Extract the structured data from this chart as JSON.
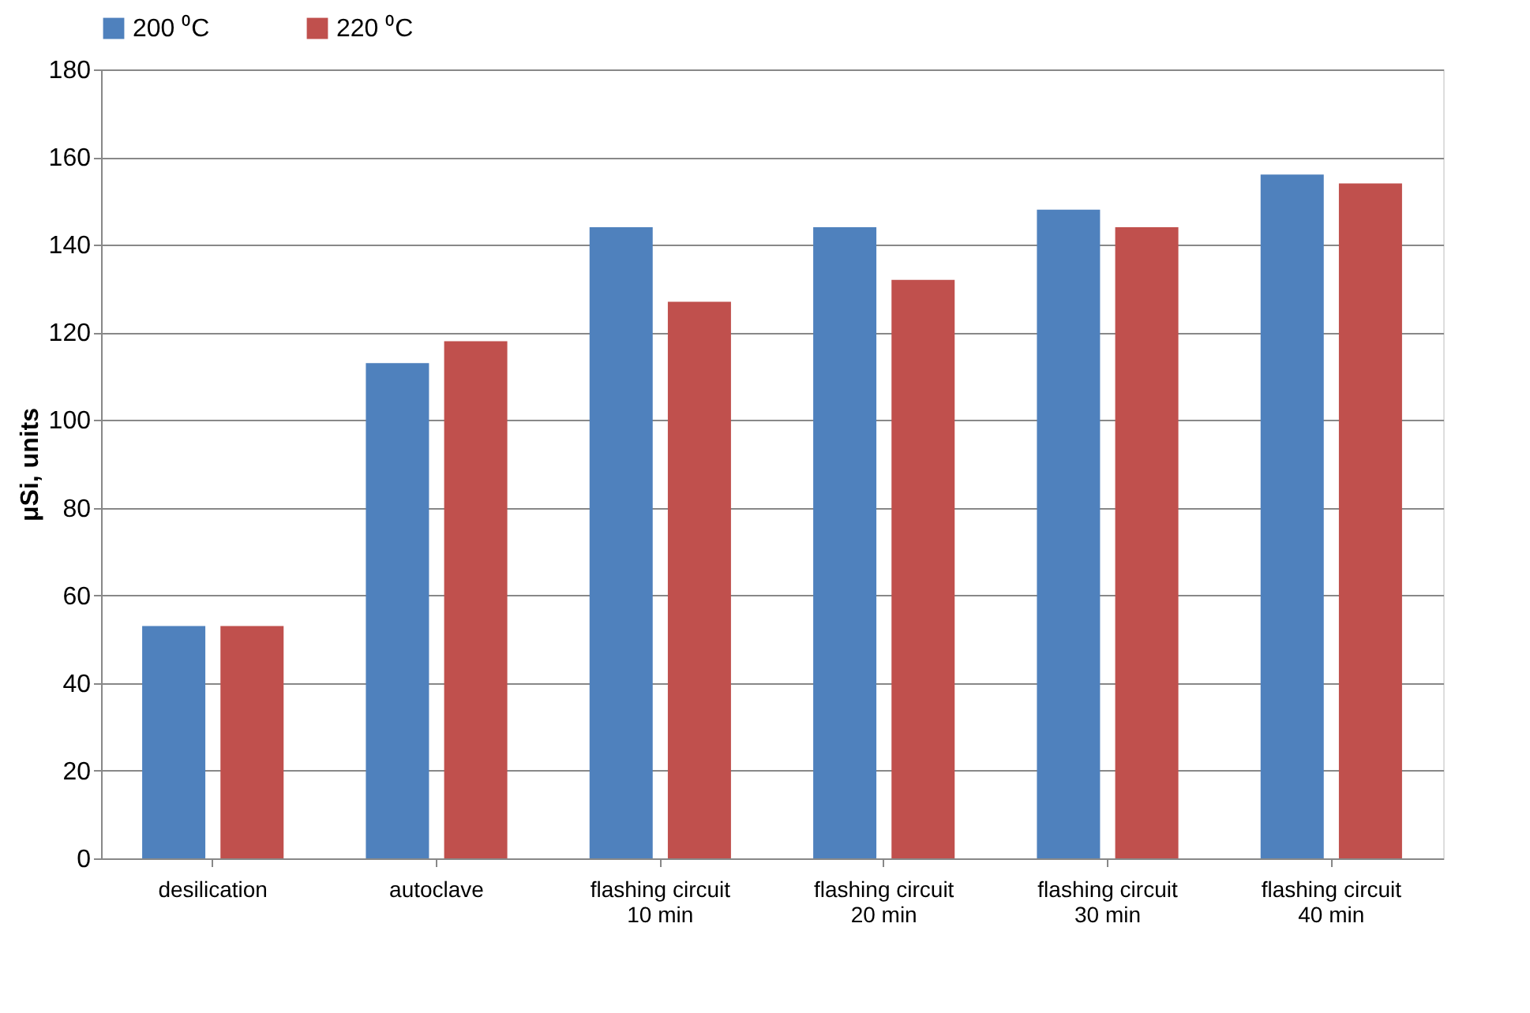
{
  "chart_data": {
    "type": "bar",
    "ylabel": "μSi, units",
    "categories": [
      "desilication",
      "autoclave",
      "flashing circuit\n10 min",
      "flashing circuit\n20 min",
      "flashing circuit\n30 min",
      "flashing circuit\n40 min"
    ],
    "series": [
      {
        "name": "200 ⁰C",
        "color": "#4f81bd",
        "values": [
          53,
          113,
          144,
          144,
          148,
          156
        ]
      },
      {
        "name": "220 ⁰C",
        "color": "#c0504d",
        "values": [
          53,
          118,
          127,
          132,
          144,
          154
        ]
      }
    ],
    "ylim": [
      0,
      180
    ],
    "yticks": [
      0,
      20,
      40,
      60,
      80,
      100,
      120,
      140,
      160,
      180
    ],
    "grid": "y",
    "legend": "top"
  }
}
